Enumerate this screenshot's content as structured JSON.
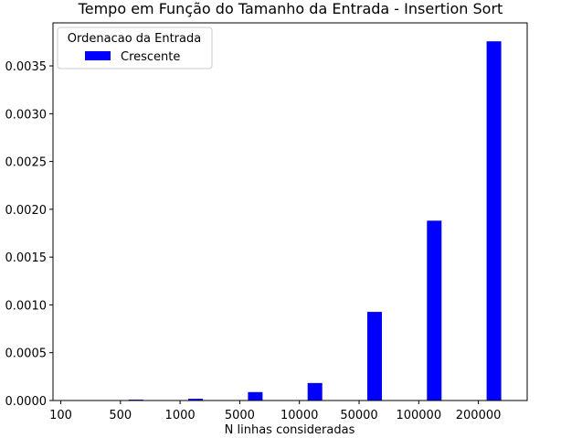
{
  "chart_data": {
    "type": "bar",
    "title": "Tempo em Função do Tamanho da Entrada - Insertion Sort",
    "xlabel": "N linhas consideradas",
    "ylabel": "",
    "categories": [
      "100",
      "500",
      "1000",
      "5000",
      "10000",
      "50000",
      "100000",
      "200000"
    ],
    "series": [
      {
        "name": "Crescente",
        "color": "#0000ff",
        "values": [
          1e-06,
          9e-06,
          1.8e-05,
          8.8e-05,
          0.000183,
          0.000927,
          0.001881,
          0.003757
        ]
      }
    ],
    "ylim": [
      0,
      0.00395
    ],
    "yticks": [
      "0.0000",
      "0.0005",
      "0.0010",
      "0.0015",
      "0.0020",
      "0.0025",
      "0.0030",
      "0.0035"
    ],
    "ytick_values": [
      0,
      0.0005,
      0.001,
      0.0015,
      0.002,
      0.0025,
      0.003,
      0.0035
    ],
    "legend": {
      "title": "Ordenacao da Entrada",
      "placement": "top-left"
    },
    "grid": false
  }
}
